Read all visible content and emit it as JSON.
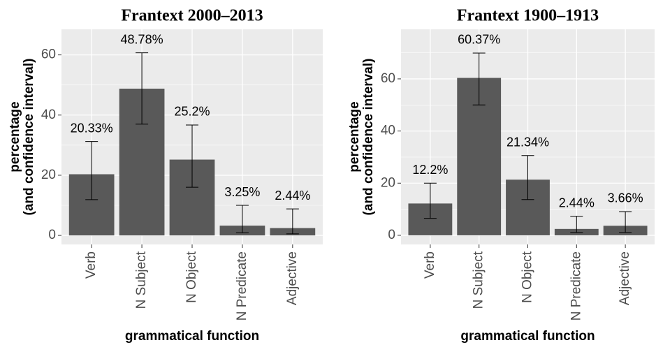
{
  "chart_data": [
    {
      "type": "bar",
      "title": "Frantext 2000–2013",
      "ylabel": [
        "percentage",
        "(and confidence interval)"
      ],
      "xlabel": "grammatical function",
      "categories": [
        "Verb",
        "N Subject",
        "N Object",
        "N Predicate",
        "Adjective"
      ],
      "values": [
        20.33,
        48.78,
        25.2,
        3.25,
        2.44
      ],
      "value_labels": [
        "20.33%",
        "48.78%",
        "25.2%",
        "3.25%",
        "2.44%"
      ],
      "ci_low": [
        11.9,
        37.0,
        16.0,
        0.9,
        0.5
      ],
      "ci_high": [
        31.2,
        60.7,
        36.7,
        10.0,
        8.8
      ],
      "color": "#595959",
      "ylim": [
        -3,
        68.5
      ],
      "yticks": [
        0,
        20,
        40,
        60
      ],
      "grid": true
    },
    {
      "type": "bar",
      "title": "Frantext 1900–1913",
      "ylabel": [
        "percentage",
        "(and confidence interval)"
      ],
      "xlabel": "grammatical function",
      "categories": [
        "Verb",
        "N Subject",
        "N Object",
        "N Predicate",
        "Adjective"
      ],
      "values": [
        12.2,
        60.37,
        21.34,
        2.44,
        3.66
      ],
      "value_labels": [
        "12.2%",
        "60.37%",
        "21.34%",
        "2.44%",
        "3.66%"
      ],
      "ci_low": [
        6.5,
        50.0,
        13.7,
        1.1,
        1.1
      ],
      "ci_high": [
        20.0,
        69.9,
        30.6,
        7.3,
        9.1
      ],
      "color": "#595959",
      "ylim": [
        -3.5,
        79
      ],
      "yticks": [
        0,
        20,
        40,
        60
      ],
      "grid": true
    }
  ]
}
